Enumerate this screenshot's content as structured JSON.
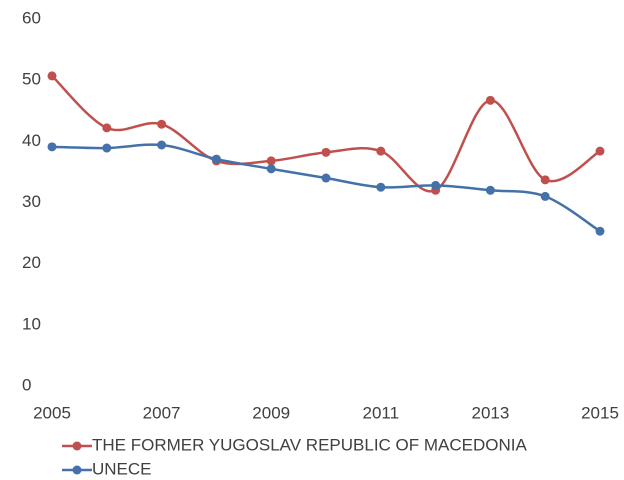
{
  "chart_data": {
    "type": "line",
    "x": [
      2005,
      2006,
      2007,
      2008,
      2009,
      2010,
      2011,
      2012,
      2013,
      2014,
      2015
    ],
    "series": [
      {
        "name": "THE FORMER YUGOSLAV REPUBLIC OF MACEDONIA",
        "color": "#c0504d",
        "values": [
          50.7,
          42.2,
          42.8,
          36.8,
          36.8,
          38.2,
          38.4,
          32.0,
          46.7,
          33.7,
          38.4
        ]
      },
      {
        "name": "UNECE",
        "color": "#4472a8",
        "values": [
          39.1,
          38.9,
          39.4,
          37.1,
          35.5,
          34.0,
          32.5,
          32.8,
          32.0,
          31.0,
          25.3
        ]
      }
    ],
    "xlim": [
      2005,
      2015
    ],
    "xticks": [
      2005,
      2007,
      2009,
      2011,
      2013,
      2015
    ],
    "ylim": [
      0,
      60
    ],
    "yticks": [
      0,
      10,
      20,
      30,
      40,
      50,
      60
    ],
    "grid": false,
    "smooth": true,
    "legend": "bottom"
  }
}
